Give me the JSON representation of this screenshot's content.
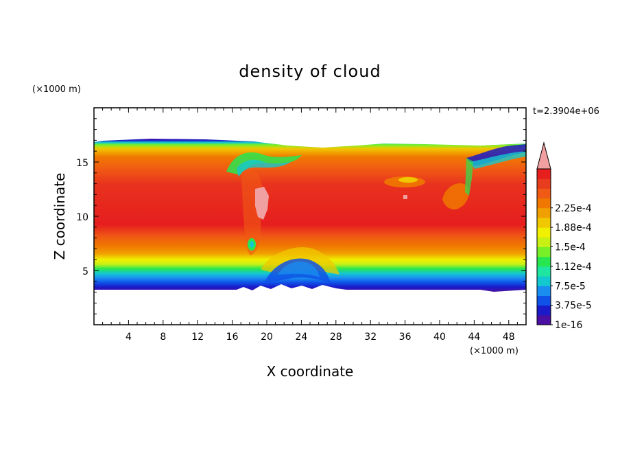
{
  "chart_data": {
    "type": "heatmap",
    "title": "density of cloud",
    "xlabel": "X coordinate",
    "ylabel": "Z coordinate",
    "x_unit": "(×1000 m)",
    "y_unit": "(×1000 m)",
    "time_label": "t=2.3904e+06",
    "xlim": [
      0,
      50
    ],
    "ylim": [
      0,
      20
    ],
    "x_ticks": [
      4,
      8,
      12,
      16,
      20,
      24,
      28,
      32,
      36,
      40,
      44,
      48
    ],
    "y_ticks": [
      5,
      10,
      15
    ],
    "colorbar": {
      "labels": [
        "1e-16",
        "3.75e-5",
        "7.5e-5",
        "1.12e-4",
        "1.5e-4",
        "1.88e-4",
        "2.25e-4"
      ],
      "colors": [
        "#4a0fa3",
        "#1a1ac8",
        "#0f52e8",
        "#1a8ef0",
        "#14c8d0",
        "#1ee6a0",
        "#28e650",
        "#78f028",
        "#c8f014",
        "#f0f000",
        "#f0c800",
        "#f0a000",
        "#f07800",
        "#f05a14",
        "#e83c1e",
        "#e61e1e"
      ],
      "extend_color": "#f0a0a0"
    },
    "cloud_base": 3.5,
    "cloud_top": 16.8
  }
}
